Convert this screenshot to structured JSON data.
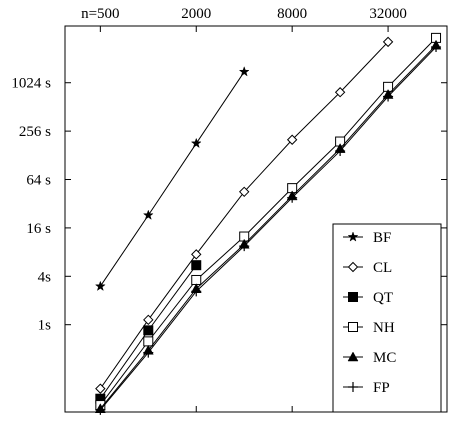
{
  "chart_data": {
    "type": "line",
    "title": "",
    "xlabel": "",
    "ylabel": "",
    "x_scale": "log2",
    "y_scale": "log2",
    "x_ticks": [
      {
        "value": 500,
        "label": "n=500"
      },
      {
        "value": 2000,
        "label": "2000"
      },
      {
        "value": 8000,
        "label": "8000"
      },
      {
        "value": 32000,
        "label": "32000"
      }
    ],
    "y_ticks": [
      {
        "value": 1,
        "label": "1s"
      },
      {
        "value": 4,
        "label": "4s"
      },
      {
        "value": 16,
        "label": "16 s"
      },
      {
        "value": 64,
        "label": "64 s"
      },
      {
        "value": 256,
        "label": "256 s"
      },
      {
        "value": 1024,
        "label": "1024  s"
      }
    ],
    "xlim": [
      300,
      75000
    ],
    "ylim": [
      0.082,
      5200
    ],
    "grid": false,
    "legend_position": "bottom-right",
    "series": [
      {
        "name": "BF",
        "marker": "star",
        "x": [
          500,
          1000,
          2000,
          4000
        ],
        "y": [
          3.0,
          23,
          180,
          1400
        ]
      },
      {
        "name": "CL",
        "marker": "diamond-open",
        "x": [
          500,
          1000,
          2000,
          4000,
          8000,
          16000,
          32000
        ],
        "y": [
          0.16,
          1.15,
          7.5,
          45,
          200,
          780,
          3300
        ]
      },
      {
        "name": "QT",
        "marker": "square-filled",
        "x": [
          500,
          1000,
          2000
        ],
        "y": [
          0.12,
          0.85,
          5.5
        ]
      },
      {
        "name": "NH",
        "marker": "square-open",
        "x": [
          500,
          1000,
          2000,
          4000,
          8000,
          16000,
          32000,
          64000
        ],
        "y": [
          0.1,
          0.62,
          3.6,
          12.5,
          50,
          190,
          910,
          3700
        ]
      },
      {
        "name": "MC",
        "marker": "triangle-filled",
        "x": [
          500,
          1000,
          2000,
          4000,
          8000,
          16000,
          32000,
          64000
        ],
        "y": [
          0.09,
          0.48,
          2.8,
          10,
          40,
          155,
          730,
          3000
        ]
      },
      {
        "name": "FP",
        "marker": "plus",
        "x": [
          500,
          1000,
          2000,
          4000,
          8000,
          16000,
          32000,
          64000
        ],
        "y": [
          0.087,
          0.45,
          2.6,
          9.5,
          38,
          145,
          690,
          2850
        ]
      }
    ]
  }
}
